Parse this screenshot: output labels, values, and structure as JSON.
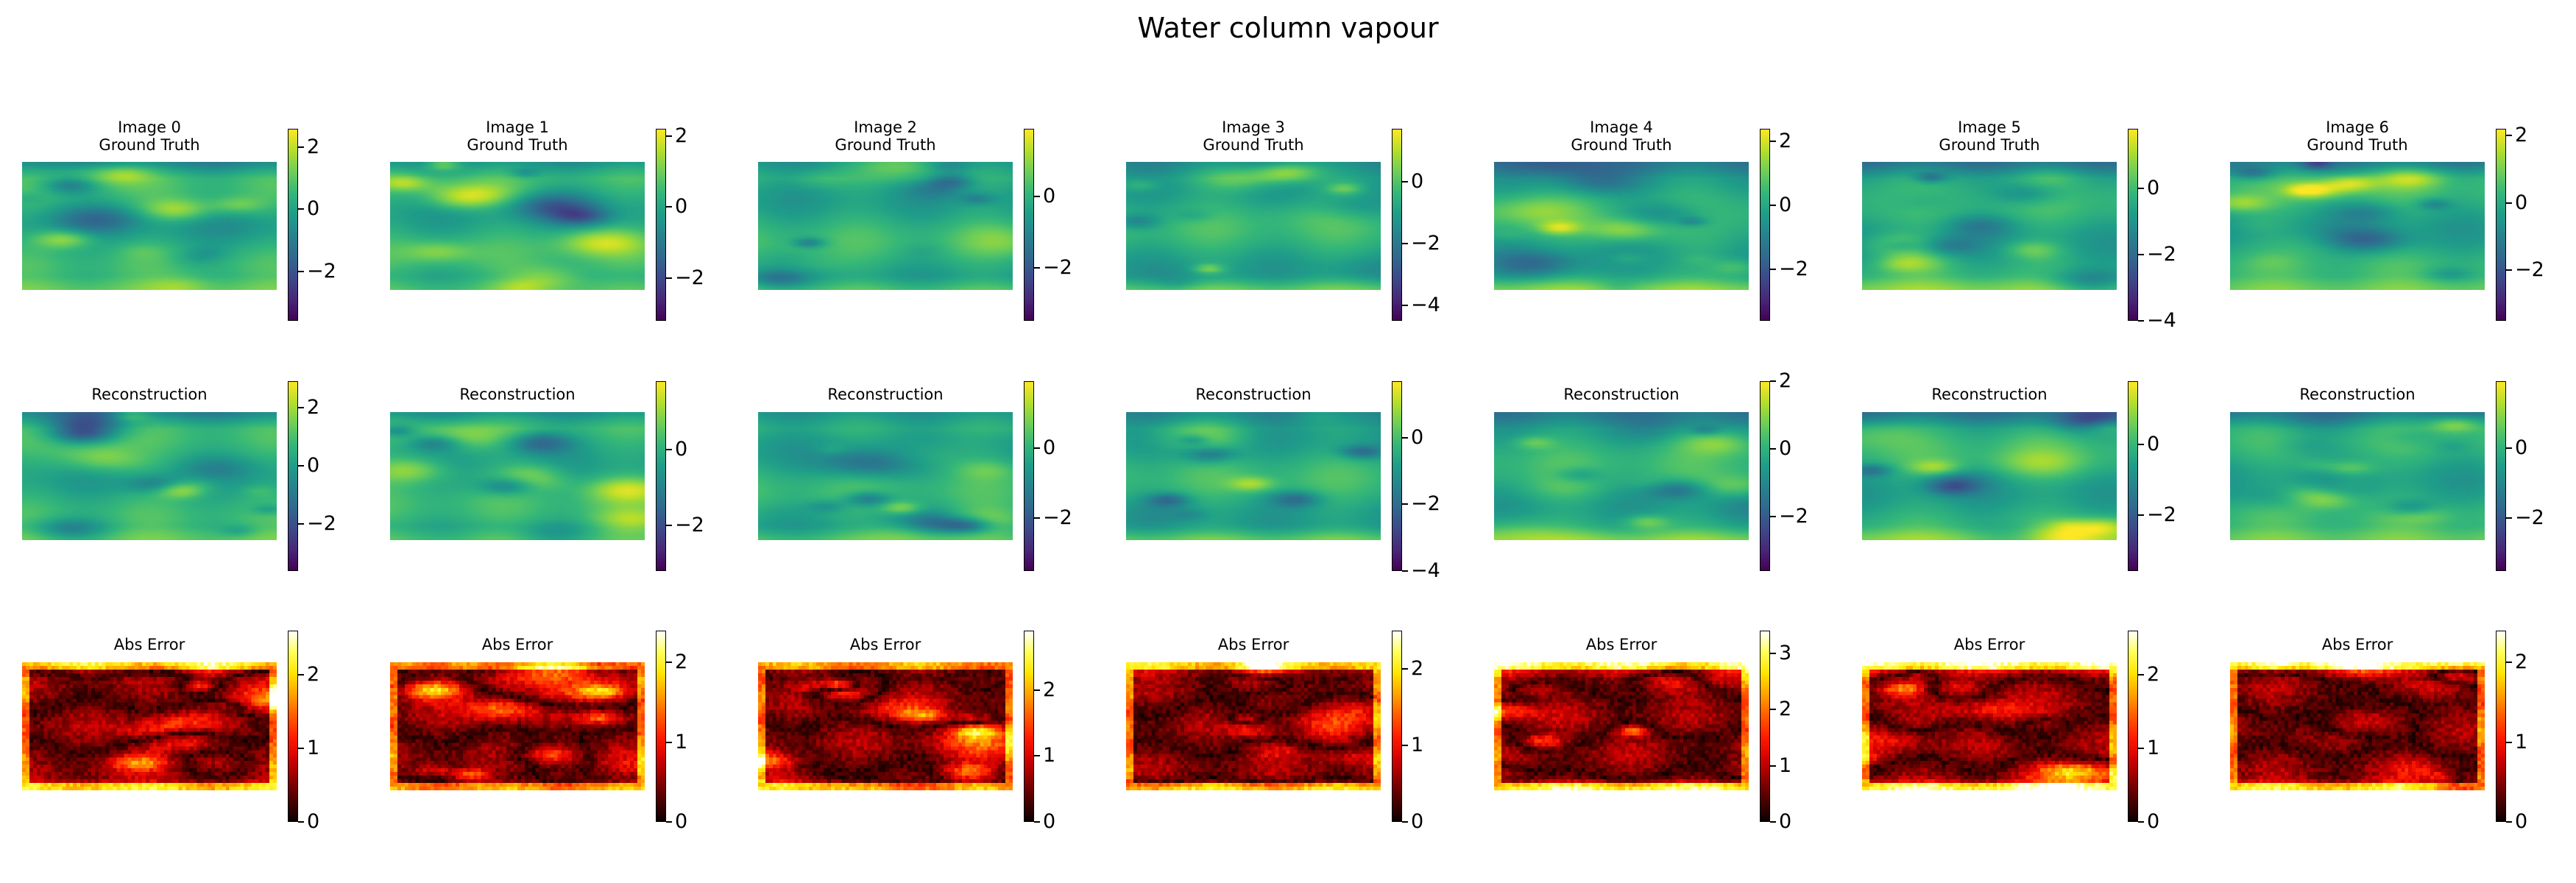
{
  "chart_data": {
    "type": "heatmap",
    "title": "Water column vapour",
    "layout": "3 rows x 7 columns",
    "colormaps": {
      "ground_truth": "viridis",
      "reconstruction": "viridis",
      "abs_error": "hot"
    },
    "images": [
      {
        "label": "Image 0",
        "ground_truth": {
          "title": "Ground Truth",
          "vmin": -3.6,
          "vmax": 2.6,
          "ticks": [
            "2",
            "0",
            "−2"
          ],
          "tick_values": [
            2,
            0,
            -2
          ]
        },
        "reconstruction": {
          "title": "Reconstruction",
          "vmin": -3.6,
          "vmax": 2.9,
          "ticks": [
            "2",
            "0",
            "−2"
          ],
          "tick_values": [
            2,
            0,
            -2
          ]
        },
        "abs_error": {
          "title": "Abs Error",
          "vmin": 0,
          "vmax": 2.6,
          "ticks": [
            "2",
            "1",
            "0"
          ],
          "tick_values": [
            2,
            1,
            0
          ]
        }
      },
      {
        "label": "Image 1",
        "ground_truth": {
          "title": "Ground Truth",
          "vmin": -3.2,
          "vmax": 2.2,
          "ticks": [
            "2",
            "0",
            "−2"
          ],
          "tick_values": [
            2,
            0,
            -2
          ]
        },
        "reconstruction": {
          "title": "Reconstruction",
          "vmin": -3.2,
          "vmax": 1.8,
          "ticks": [
            "0",
            "−2"
          ],
          "tick_values": [
            0,
            -2
          ]
        },
        "abs_error": {
          "title": "Abs Error",
          "vmin": 0,
          "vmax": 2.4,
          "ticks": [
            "2",
            "1",
            "0"
          ],
          "tick_values": [
            2,
            1,
            0
          ]
        }
      },
      {
        "label": "Image 2",
        "ground_truth": {
          "title": "Ground Truth",
          "vmin": -3.5,
          "vmax": 1.9,
          "ticks": [
            "0",
            "−2"
          ],
          "tick_values": [
            0,
            -2
          ]
        },
        "reconstruction": {
          "title": "Reconstruction",
          "vmin": -3.5,
          "vmax": 1.9,
          "ticks": [
            "0",
            "−2"
          ],
          "tick_values": [
            0,
            -2
          ]
        },
        "abs_error": {
          "title": "Abs Error",
          "vmin": 0,
          "vmax": 2.9,
          "ticks": [
            "2",
            "1",
            "0"
          ],
          "tick_values": [
            2,
            1,
            0
          ]
        }
      },
      {
        "label": "Image 3",
        "ground_truth": {
          "title": "Ground Truth",
          "vmin": -4.5,
          "vmax": 1.7,
          "ticks": [
            "0",
            "−2",
            "−4"
          ],
          "tick_values": [
            0,
            -2,
            -4
          ]
        },
        "reconstruction": {
          "title": "Reconstruction",
          "vmin": -4.0,
          "vmax": 1.7,
          "ticks": [
            "0",
            "−2",
            "−4"
          ],
          "tick_values": [
            0,
            -2,
            -4
          ]
        },
        "abs_error": {
          "title": "Abs Error",
          "vmin": 0,
          "vmax": 2.5,
          "ticks": [
            "2",
            "1",
            "0"
          ],
          "tick_values": [
            2,
            1,
            0
          ]
        }
      },
      {
        "label": "Image 4",
        "ground_truth": {
          "title": "Ground Truth",
          "vmin": -3.6,
          "vmax": 2.4,
          "ticks": [
            "2",
            "0",
            "−2"
          ],
          "tick_values": [
            2,
            0,
            -2
          ]
        },
        "reconstruction": {
          "title": "Reconstruction",
          "vmin": -3.6,
          "vmax": 2.0,
          "ticks": [
            "2",
            "0",
            "−2"
          ],
          "tick_values": [
            2,
            0,
            -2
          ]
        },
        "abs_error": {
          "title": "Abs Error",
          "vmin": 0,
          "vmax": 3.4,
          "ticks": [
            "3",
            "2",
            "1",
            "0"
          ],
          "tick_values": [
            3,
            2,
            1,
            0
          ]
        }
      },
      {
        "label": "Image 5",
        "ground_truth": {
          "title": "Ground Truth",
          "vmin": -4.0,
          "vmax": 1.8,
          "ticks": [
            "0",
            "−2",
            "−4"
          ],
          "tick_values": [
            0,
            -2,
            -4
          ]
        },
        "reconstruction": {
          "title": "Reconstruction",
          "vmin": -3.6,
          "vmax": 1.8,
          "ticks": [
            "0",
            "−2"
          ],
          "tick_values": [
            0,
            -2
          ]
        },
        "abs_error": {
          "title": "Abs Error",
          "vmin": 0,
          "vmax": 2.6,
          "ticks": [
            "2",
            "1",
            "0"
          ],
          "tick_values": [
            2,
            1,
            0
          ]
        }
      },
      {
        "label": "Image 6",
        "ground_truth": {
          "title": "Ground Truth",
          "vmin": -3.5,
          "vmax": 2.2,
          "ticks": [
            "2",
            "0",
            "−2"
          ],
          "tick_values": [
            2,
            0,
            -2
          ]
        },
        "reconstruction": {
          "title": "Reconstruction",
          "vmin": -3.5,
          "vmax": 1.9,
          "ticks": [
            "0",
            "−2"
          ],
          "tick_values": [
            0,
            -2
          ]
        },
        "abs_error": {
          "title": "Abs Error",
          "vmin": 0,
          "vmax": 2.4,
          "ticks": [
            "2",
            "1",
            "0"
          ],
          "tick_values": [
            2,
            1,
            0
          ]
        }
      }
    ]
  }
}
